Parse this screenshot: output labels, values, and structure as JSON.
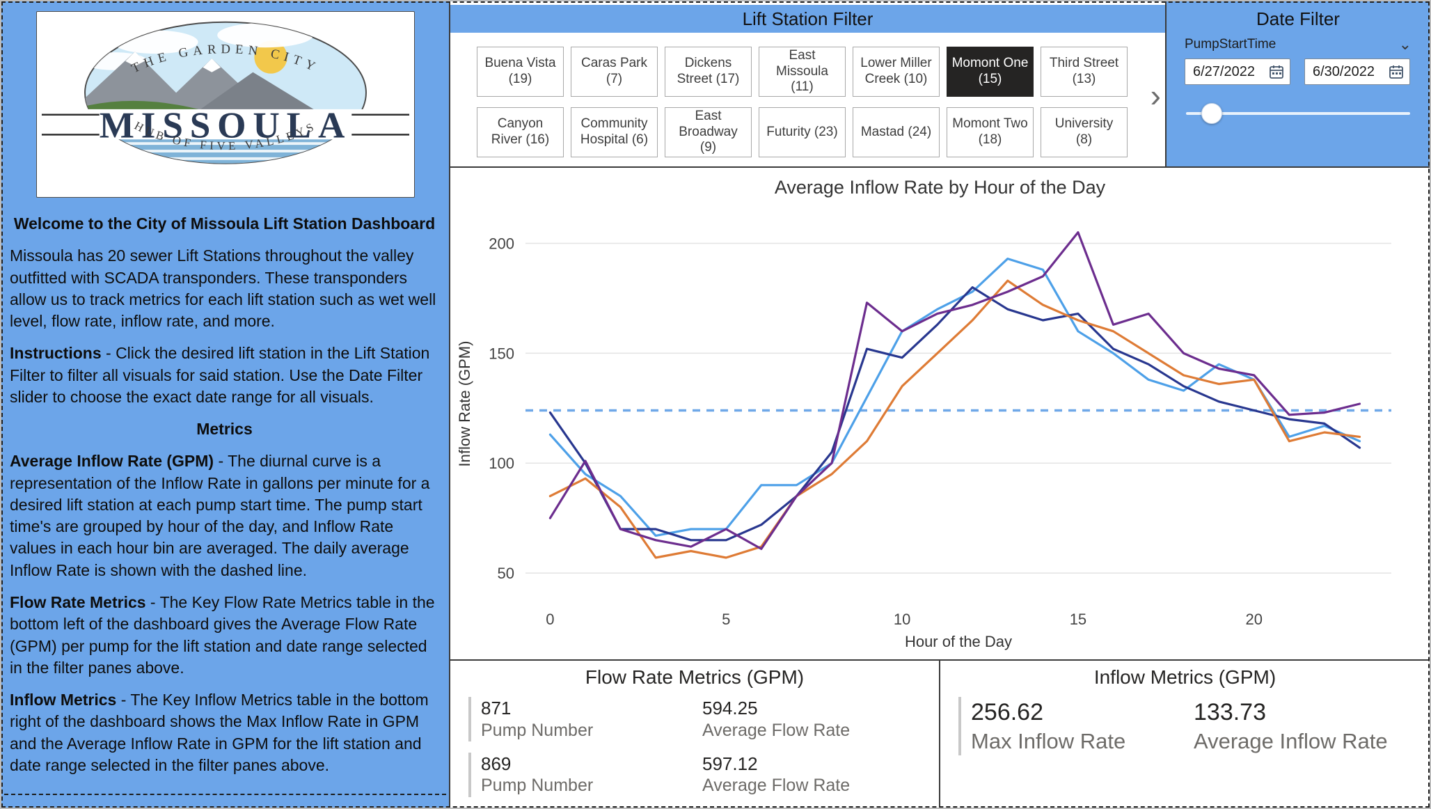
{
  "logo": {
    "arc_top": "THE GARDEN CITY",
    "name": "MISSOULA",
    "arc_bottom": "HUB OF FIVE VALLEYS"
  },
  "sidebar": {
    "welcome_title": "Welcome to the City of Missoula Lift Station Dashboard",
    "intro": "Missoula has 20 sewer Lift Stations throughout the valley outfitted with SCADA transponders. These transponders allow us to track metrics for each lift station such as wet well level, flow rate, inflow rate, and more.",
    "instructions_label": "Instructions",
    "instructions_text": " - Click the desired lift station in the Lift Station Filter to filter all visuals for said station. Use the Date Filter slider to choose the exact date range for all visuals.",
    "metrics_heading": "Metrics",
    "avg_inflow_label": "Average Inflow Rate (GPM)",
    "avg_inflow_text": " - The diurnal curve is a representation of the Inflow Rate in gallons per minute for a desired lift station at each pump start time. The pump start time's are grouped by hour of the day, and Inflow Rate values in each hour bin are averaged. The daily average Inflow Rate is shown with the dashed line.",
    "flow_label": "Flow Rate Metrics",
    "flow_text": " - The Key Flow Rate Metrics table in the bottom left of the dashboard gives the Average Flow Rate (GPM) per pump for the lift station and date range selected in the filter panes above.",
    "inflow_label": "Inflow Metrics",
    "inflow_text": " - The Key Inflow Metrics table in the bottom right of the dashboard shows the Max Inflow Rate in GPM and the Average Inflow Rate in GPM for the lift station and date range selected in the filter panes above."
  },
  "station_filter": {
    "title": "Lift Station Filter",
    "next_arrow": "›",
    "stations": [
      {
        "label": "Buena Vista (19)",
        "selected": false
      },
      {
        "label": "Caras Park (7)",
        "selected": false
      },
      {
        "label": "Dickens Street (17)",
        "selected": false
      },
      {
        "label": "East Missoula (11)",
        "selected": false
      },
      {
        "label": "Lower Miller Creek (10)",
        "selected": false
      },
      {
        "label": "Momont One (15)",
        "selected": true
      },
      {
        "label": "Third Street (13)",
        "selected": false
      },
      {
        "label": "Canyon River (16)",
        "selected": false
      },
      {
        "label": "Community Hospital (6)",
        "selected": false
      },
      {
        "label": "East Broadway (9)",
        "selected": false
      },
      {
        "label": "Futurity (23)",
        "selected": false
      },
      {
        "label": "Mastad (24)",
        "selected": false
      },
      {
        "label": "Momont Two (18)",
        "selected": false
      },
      {
        "label": "University (8)",
        "selected": false
      }
    ]
  },
  "date_filter": {
    "title": "Date Filter",
    "field_label": "PumpStartTime",
    "dropdown_arrow": "⌄",
    "start_date": "6/27/2022",
    "end_date": "6/30/2022"
  },
  "chart_data": {
    "type": "line",
    "title": "Average Inflow Rate by Hour of the Day",
    "xlabel": "Hour of the Day",
    "ylabel": "Inflow Rate (GPM)",
    "x": [
      0,
      1,
      2,
      3,
      4,
      5,
      6,
      7,
      8,
      9,
      10,
      11,
      12,
      13,
      14,
      15,
      16,
      17,
      18,
      19,
      20,
      21,
      22,
      23
    ],
    "xticks": [
      0,
      5,
      10,
      15,
      20
    ],
    "yticks": [
      50,
      100,
      150,
      200
    ],
    "xlim": [
      -0.7,
      23.9
    ],
    "ylim": [
      38,
      216
    ],
    "grid": "horizontal",
    "legend": "none",
    "average_line": {
      "value": 124,
      "style": "dashed",
      "color": "#6FA8E8"
    },
    "series": [
      {
        "name": "light-blue-line",
        "color": "#4DA0E8",
        "values": [
          113,
          95,
          85,
          67,
          70,
          70,
          90,
          90,
          100,
          130,
          160,
          170,
          178,
          193,
          188,
          160,
          150,
          138,
          133,
          145,
          138,
          112,
          117,
          110
        ]
      },
      {
        "name": "dark-blue-line",
        "color": "#28378F",
        "values": [
          123,
          100,
          70,
          70,
          65,
          65,
          72,
          85,
          105,
          152,
          148,
          163,
          180,
          170,
          165,
          168,
          152,
          145,
          135,
          128,
          124,
          120,
          118,
          107
        ]
      },
      {
        "name": "orange-line",
        "color": "#DE7B35",
        "values": [
          85,
          93,
          80,
          57,
          60,
          57,
          62,
          85,
          95,
          110,
          135,
          150,
          165,
          183,
          172,
          165,
          160,
          150,
          140,
          136,
          138,
          110,
          114,
          112
        ]
      },
      {
        "name": "purple-line",
        "color": "#6C2D8E",
        "values": [
          75,
          101,
          70,
          65,
          62,
          70,
          61,
          85,
          100,
          173,
          160,
          168,
          172,
          178,
          185,
          205,
          163,
          168,
          150,
          143,
          140,
          122,
          123,
          127
        ]
      }
    ]
  },
  "flow_metrics": {
    "title": "Flow Rate Metrics (GPM)",
    "rows": [
      {
        "value1": "871",
        "label1": "Pump Number",
        "value2": "594.25",
        "label2": "Average Flow Rate"
      },
      {
        "value1": "869",
        "label1": "Pump Number",
        "value2": "597.12",
        "label2": "Average Flow Rate"
      }
    ]
  },
  "inflow_metrics": {
    "title": "Inflow Metrics (GPM)",
    "max_value": "256.62",
    "max_label": "Max Inflow Rate",
    "avg_value": "133.73",
    "avg_label": "Average Inflow Rate"
  },
  "colors": {
    "accent_blue": "#6CA5E9",
    "selected_dark": "#252423",
    "panel_border": "#3a3a3a"
  }
}
